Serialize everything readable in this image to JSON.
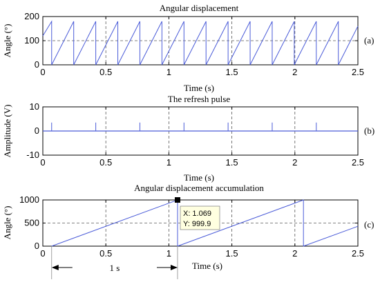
{
  "figure": {
    "note_label": "1 s"
  },
  "chart_data": [
    {
      "type": "line",
      "title": "Angular displacement",
      "xlabel": "Time (s)",
      "ylabel": "Angle (°)",
      "panel_label": "(a)",
      "xlim": [
        0,
        2.5
      ],
      "ylim": [
        0,
        200
      ],
      "x_ticks": [
        0,
        0.5,
        1,
        1.5,
        2,
        2.5
      ],
      "x_tick_labels": [
        "0",
        "0.5",
        "1",
        "1.5",
        "2",
        "2.5"
      ],
      "y_ticks": [
        0,
        100,
        200
      ],
      "y_tick_labels": [
        "0",
        "100",
        "200"
      ],
      "grid": true,
      "series": [
        {
          "color": "#4a5bd8",
          "x": [
            0,
            0.07,
            0.07,
            0.245,
            0.245,
            0.42,
            0.42,
            0.595,
            0.595,
            0.77,
            0.77,
            0.945,
            0.945,
            1.12,
            1.12,
            1.295,
            1.295,
            1.47,
            1.47,
            1.645,
            1.645,
            1.82,
            1.82,
            1.995,
            1.995,
            2.17,
            2.17,
            2.345,
            2.345,
            2.5
          ],
          "y": [
            120,
            180,
            0,
            180,
            0,
            180,
            0,
            180,
            0,
            180,
            0,
            180,
            0,
            180,
            0,
            180,
            0,
            180,
            0,
            180,
            0,
            180,
            0,
            180,
            0,
            180,
            0,
            180,
            0,
            160
          ]
        }
      ]
    },
    {
      "type": "line",
      "title": "The refresh pulse",
      "xlabel": "Time (s)",
      "ylabel": "Amplitude (V)",
      "panel_label": "(b)",
      "xlim": [
        0,
        2.5
      ],
      "ylim": [
        -10,
        10
      ],
      "x_ticks": [
        0,
        0.5,
        1,
        1.5,
        2,
        2.5
      ],
      "x_tick_labels": [
        "0",
        "0.5",
        "1",
        "1.5",
        "2",
        "2.5"
      ],
      "y_ticks": [
        -10,
        0,
        10
      ],
      "y_tick_labels": [
        "-10",
        "0",
        "10"
      ],
      "grid": true,
      "series": [
        {
          "color": "#4a5bd8",
          "baseline": 0,
          "pulse_times": [
            0.07,
            0.42,
            0.77,
            1.12,
            1.47,
            1.82,
            2.17
          ],
          "pulse_height": 3.5
        }
      ]
    },
    {
      "type": "line",
      "title": "Angular displacement accumulation",
      "xlabel": "Time (s)",
      "ylabel": "Angle (°)",
      "panel_label": "(c)",
      "xlim": [
        0,
        2.5
      ],
      "ylim": [
        0,
        1000
      ],
      "x_ticks": [
        0,
        0.5,
        1,
        1.5,
        2,
        2.5
      ],
      "x_tick_labels": [
        "0",
        "0.5",
        "1",
        "1.5",
        "2",
        "2.5"
      ],
      "y_ticks": [
        0,
        500,
        1000
      ],
      "y_tick_labels": [
        "0",
        "500",
        "1000"
      ],
      "grid": true,
      "series": [
        {
          "color": "#4a5bd8",
          "x": [
            0.07,
            1.069,
            1.069,
            2.068,
            2.068,
            2.5
          ],
          "y": [
            0,
            999.9,
            0,
            999.9,
            0,
            430
          ]
        }
      ],
      "datatip": {
        "x": 1.069,
        "y": 999.9,
        "line1": "X: 1.069",
        "line2": "Y: 999.9"
      },
      "annotation": {
        "x_start": 0.07,
        "x_end": 1.069,
        "label": "1 s"
      }
    }
  ]
}
